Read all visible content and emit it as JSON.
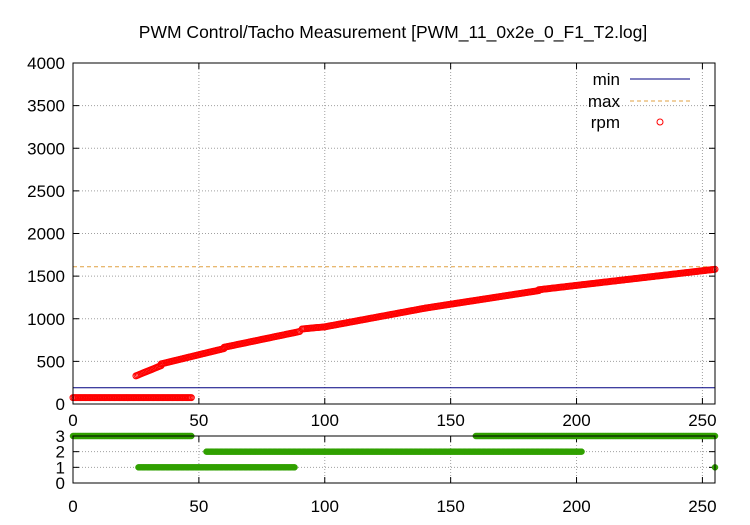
{
  "chart_data": [
    {
      "type": "scatter",
      "title": "PWM Control/Tacho Measurement [PWM_11_0x2e_0_F1_T2.log]",
      "xlabel": "",
      "ylabel": "",
      "xlim": [
        0,
        255
      ],
      "ylim": [
        0,
        4000
      ],
      "x_ticks": [
        "0",
        "50",
        "100",
        "150",
        "200",
        "250"
      ],
      "y_ticks": [
        "0",
        "500",
        "1000",
        "1500",
        "2000",
        "2500",
        "3000",
        "3500",
        "4000"
      ],
      "grid": true,
      "legend_position": "top-right",
      "series": [
        {
          "name": "min",
          "style": "line",
          "color": "#000080",
          "y": 190
        },
        {
          "name": "max",
          "style": "dashed-line",
          "color": "#e0a040",
          "y": 1610
        },
        {
          "name": "rpm",
          "style": "circle-markers",
          "color": "#ff0000",
          "segments": [
            {
              "x_from": 0,
              "x_to": 47,
              "y_from": 75,
              "y_to": 75
            },
            {
              "x_from": 25,
              "x_to": 35,
              "y_from": 330,
              "y_to": 450
            },
            {
              "x_from": 35,
              "x_to": 60,
              "y_from": 470,
              "y_to": 650
            },
            {
              "x_from": 60,
              "x_to": 90,
              "y_from": 665,
              "y_to": 850
            },
            {
              "x_from": 91,
              "x_to": 100,
              "y_from": 880,
              "y_to": 905
            },
            {
              "x_from": 100,
              "x_to": 140,
              "y_from": 905,
              "y_to": 1125
            },
            {
              "x_from": 140,
              "x_to": 185,
              "y_from": 1125,
              "y_to": 1330
            },
            {
              "x_from": 185,
              "x_to": 255,
              "y_from": 1340,
              "y_to": 1580
            }
          ]
        }
      ]
    },
    {
      "type": "scatter",
      "title": "",
      "xlabel": "",
      "ylabel": "",
      "xlim": [
        0,
        255
      ],
      "ylim": [
        0,
        3
      ],
      "x_ticks": [
        "0",
        "50",
        "100",
        "150",
        "200",
        "250"
      ],
      "y_ticks": [
        "0",
        "1",
        "2",
        "3"
      ],
      "grid": true,
      "series": [
        {
          "name": "",
          "style": "filled-circle-markers",
          "color": "#30a000",
          "segments": [
            {
              "x_from": 0,
              "x_to": 47,
              "y": 3
            },
            {
              "x_from": 160,
              "x_to": 255,
              "y": 3
            },
            {
              "x_from": 53,
              "x_to": 202,
              "y": 2
            },
            {
              "x_from": 26,
              "x_to": 88,
              "y": 1
            },
            {
              "x_from": 255,
              "x_to": 255,
              "y": 1
            }
          ]
        }
      ]
    }
  ]
}
